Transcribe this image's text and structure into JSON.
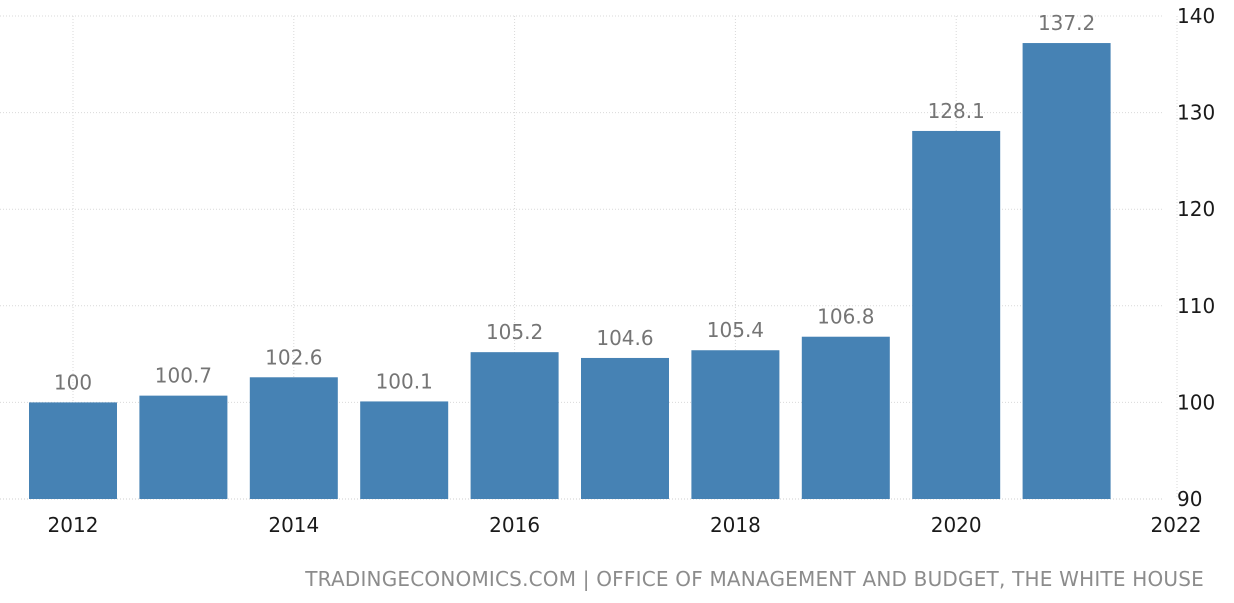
{
  "chart_data": {
    "type": "bar",
    "categories": [
      "2012",
      "2013",
      "2014",
      "2015",
      "2016",
      "2017",
      "2018",
      "2019",
      "2020",
      "2021"
    ],
    "values": [
      100,
      100.7,
      102.6,
      100.1,
      105.2,
      104.6,
      105.4,
      106.8,
      128.1,
      137.2
    ],
    "data_labels": [
      "100",
      "100.7",
      "102.6",
      "100.1",
      "105.2",
      "104.6",
      "105.4",
      "106.8",
      "128.1",
      "137.2"
    ],
    "title": "",
    "xlabel": "",
    "ylabel": "",
    "ylim": [
      90,
      140
    ],
    "y_ticks": [
      90,
      100,
      110,
      120,
      130,
      140
    ],
    "x_ticks": [
      "2012",
      "2014",
      "2016",
      "2018",
      "2020",
      "2022"
    ],
    "y_axis_position": "right",
    "grid": true,
    "bar_color": "#4682b4",
    "label_color": "#757575"
  },
  "source": "TRADINGECONOMICS.COM | OFFICE OF MANAGEMENT AND BUDGET, THE WHITE HOUSE"
}
